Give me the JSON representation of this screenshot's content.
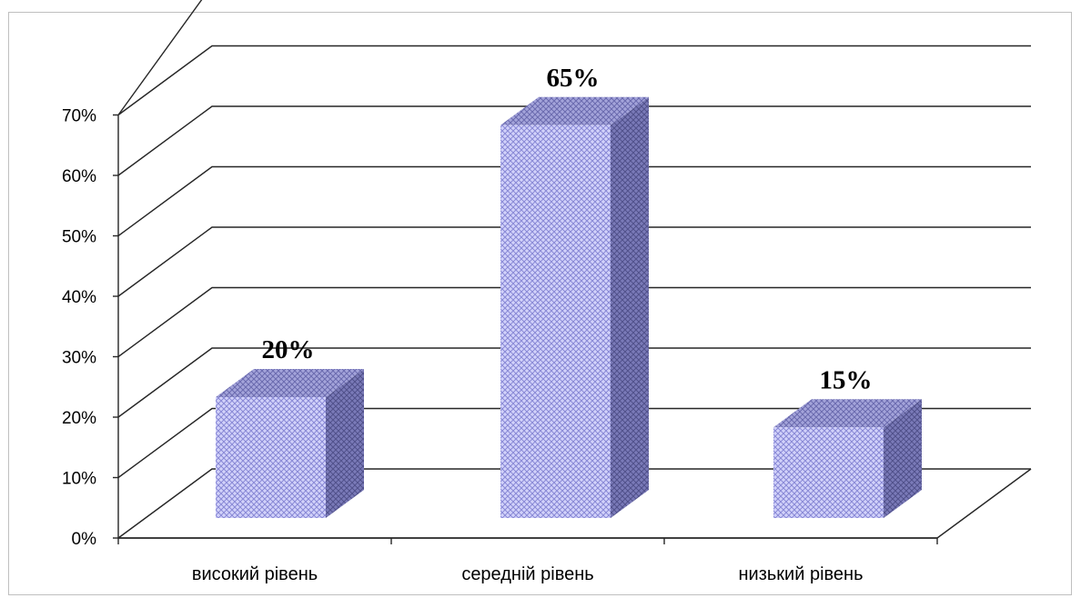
{
  "chart_data": {
    "type": "bar",
    "categories": [
      "високий рівень",
      "середній рівень",
      "низький рівень"
    ],
    "values": [
      20,
      65,
      15
    ],
    "data_labels": [
      "20%",
      "65%",
      "15%"
    ],
    "ylim": [
      0,
      70
    ],
    "yticks": [
      "0%",
      "10%",
      "20%",
      "30%",
      "40%",
      "50%",
      "60%",
      "70%"
    ],
    "title": "",
    "xlabel": "",
    "ylabel": "",
    "grid": true,
    "legend": "none",
    "style": "3d-column",
    "colors": {
      "bar_front": "#c8c8f8",
      "bar_pattern": "#8c8cd8",
      "bar_side": "#6f6fb0",
      "bar_top": "#9898d0",
      "grid": "#262626"
    }
  }
}
